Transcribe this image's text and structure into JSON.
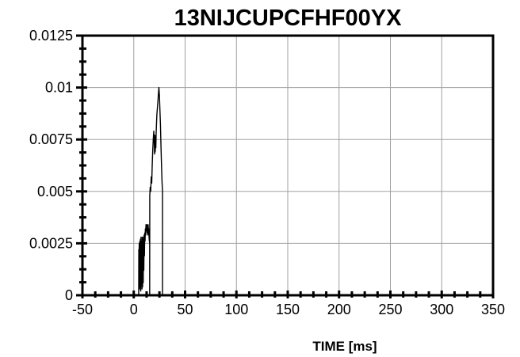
{
  "chart_data": {
    "type": "line",
    "title": "13NIJCUPCFHF00YX",
    "xlabel": "TIME [ms]",
    "ylabel": "",
    "xlim": [
      -50,
      350
    ],
    "ylim": [
      0,
      0.0125
    ],
    "x_ticks": [
      -50,
      0,
      50,
      100,
      150,
      200,
      250,
      300,
      350
    ],
    "x_tick_labels": [
      "-50",
      "0",
      "50",
      "100",
      "150",
      "200",
      "250",
      "300",
      "350"
    ],
    "y_ticks": [
      0,
      0.0025,
      0.005,
      0.0075,
      0.01,
      0.0125
    ],
    "y_tick_labels": [
      "0",
      "0.0025",
      "0.005",
      "0.0075",
      "0.01",
      "0.0125"
    ],
    "grid": true,
    "line_color": "#000000",
    "grid_color": "#a0a0a0",
    "series": [
      {
        "x": [
          -50,
          4.8,
          4.9,
          5.0,
          5.3,
          5.6,
          5.9,
          6.2,
          6.5,
          6.8,
          7.1,
          7.4,
          7.7,
          8.0,
          8.3,
          8.6,
          8.9,
          9.2,
          9.5,
          9.8,
          10.1,
          10.4,
          10.7,
          11.0,
          11.3,
          11.6,
          11.9,
          12.2,
          12.5,
          12.8,
          13.1,
          13.4,
          13.7,
          14.0,
          14.3,
          14.6,
          14.9,
          15.2,
          15.5,
          15.5,
          15.6,
          16.0,
          16.5,
          17.0,
          17.5,
          18.0,
          18.5,
          19.0,
          19.5,
          20.0,
          20.3,
          20.6,
          20.9,
          21.2,
          21.5,
          21.8,
          22.1,
          22.5,
          23.0,
          23.5,
          24.0,
          24.5,
          25.0,
          25.5,
          26.0,
          26.5,
          27.0,
          27.5,
          28.0,
          28.0,
          28.1,
          350
        ],
        "y": [
          0,
          0,
          0.0022,
          0.0005,
          0.0025,
          0.0003,
          0.0026,
          0.0004,
          0.0027,
          0.0002,
          0.0028,
          0.0005,
          0.0026,
          0.0003,
          0.0028,
          0.0004,
          0.0027,
          0.0006,
          0.0028,
          0.0012,
          0.0029,
          0.0019,
          0.003,
          0.0026,
          0.0032,
          0.0029,
          0.0034,
          0.0031,
          0.0033,
          0.0034,
          0.003,
          0.0033,
          0.0029,
          0.0034,
          0.0031,
          0.0032,
          0.0028,
          0.0026,
          0.0025,
          0,
          0.0048,
          0.0052,
          0.005,
          0.0057,
          0.0054,
          0.0063,
          0.007,
          0.0075,
          0.0079,
          0.0073,
          0.0068,
          0.0077,
          0.0069,
          0.0075,
          0.0071,
          0.0078,
          0.0082,
          0.0087,
          0.009,
          0.0093,
          0.0097,
          0.01,
          0.0096,
          0.0089,
          0.0082,
          0.0072,
          0.0063,
          0.0055,
          0.005,
          0,
          0,
          0
        ]
      }
    ]
  }
}
